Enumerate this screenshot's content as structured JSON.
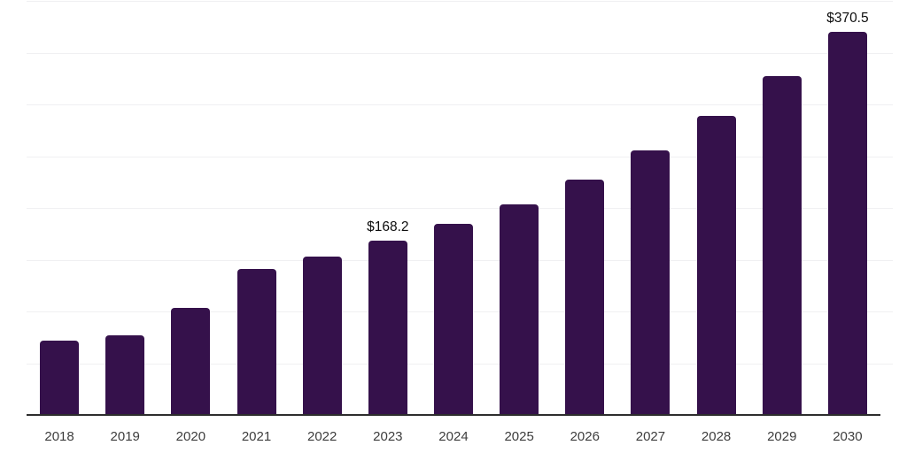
{
  "chart_data": {
    "type": "bar",
    "title": "",
    "xlabel": "",
    "ylabel": "",
    "categories": [
      "2018",
      "2019",
      "2020",
      "2021",
      "2022",
      "2023",
      "2024",
      "2025",
      "2026",
      "2027",
      "2028",
      "2029",
      "2030"
    ],
    "values": [
      72.0,
      77.2,
      103.5,
      141.4,
      153.0,
      168.2,
      184.5,
      203.5,
      227.3,
      255.5,
      289.0,
      327.1,
      370.5
    ],
    "data_labels": {
      "2023": "$168.2",
      "2030": "$370.5"
    },
    "ylim": [
      0,
      400
    ],
    "gridline_step": 50,
    "grid": true,
    "legend": false,
    "y_tick_labels_visible": false,
    "bar_color": "#35114B",
    "gridline_color": "#f0f0f2",
    "axis_color": "#2d2d2d",
    "x_tick_color": "#3d3d3d",
    "data_label_color": "#0d0d0d"
  }
}
